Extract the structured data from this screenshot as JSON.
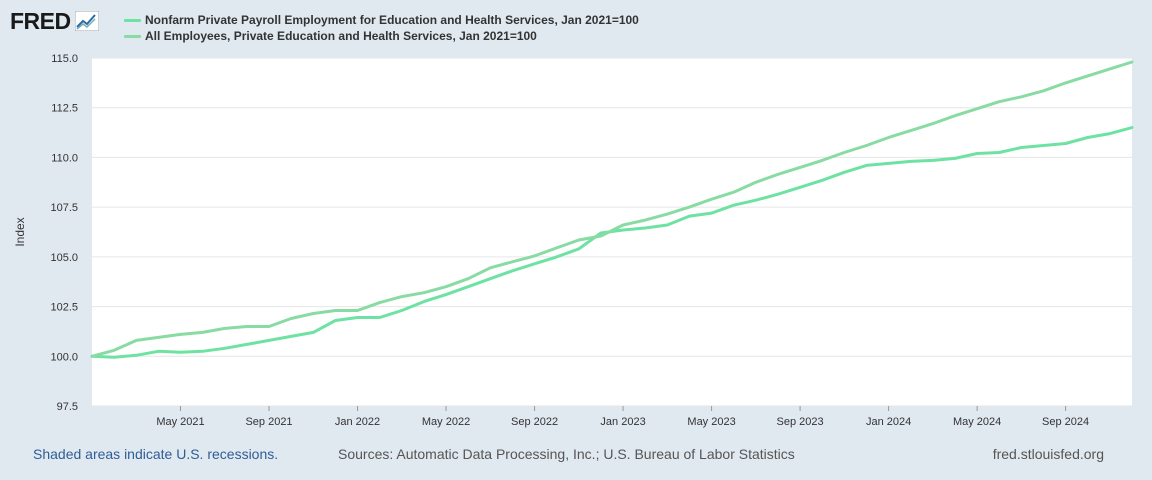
{
  "logo": {
    "text": "FRED",
    "icon": "fred-chart-icon"
  },
  "colors": {
    "background": "#e1e9f0",
    "plot": "#ffffff",
    "grid": "#e6e6e6",
    "series1": "#6de2a2",
    "series2": "#88dba2"
  },
  "footer": {
    "recession_note": "Shaded areas indicate U.S. recessions.",
    "sources": "Sources: Automatic Data Processing, Inc.; U.S. Bureau of Labor Statistics",
    "site": "fred.stlouisfed.org"
  },
  "chart_data": {
    "type": "line",
    "title": "",
    "xlabel": "",
    "ylabel": "Index",
    "ylim": [
      97.5,
      115.0
    ],
    "yticks": [
      97.5,
      100.0,
      102.5,
      105.0,
      107.5,
      110.0,
      112.5,
      115.0
    ],
    "ytick_labels": [
      "97.5",
      "100.0",
      "102.5",
      "105.0",
      "107.5",
      "110.0",
      "112.5",
      "115.0"
    ],
    "xlim": [
      "2021-01",
      "2024-12"
    ],
    "xticks": [
      {
        "date": "2021-05",
        "label": "May 2021"
      },
      {
        "date": "2021-09",
        "label": "Sep 2021"
      },
      {
        "date": "2022-01",
        "label": "Jan 2022"
      },
      {
        "date": "2022-05",
        "label": "May 2022"
      },
      {
        "date": "2022-09",
        "label": "Sep 2022"
      },
      {
        "date": "2023-01",
        "label": "Jan 2023"
      },
      {
        "date": "2023-05",
        "label": "May 2023"
      },
      {
        "date": "2023-09",
        "label": "Sep 2023"
      },
      {
        "date": "2024-01",
        "label": "Jan 2024"
      },
      {
        "date": "2024-05",
        "label": "May 2024"
      },
      {
        "date": "2024-09",
        "label": "Sep 2024"
      }
    ],
    "grid": true,
    "legend_position": "top-left",
    "x": [
      "2021-01",
      "2021-02",
      "2021-03",
      "2021-04",
      "2021-05",
      "2021-06",
      "2021-07",
      "2021-08",
      "2021-09",
      "2021-10",
      "2021-11",
      "2021-12",
      "2022-01",
      "2022-02",
      "2022-03",
      "2022-04",
      "2022-05",
      "2022-06",
      "2022-07",
      "2022-08",
      "2022-09",
      "2022-10",
      "2022-11",
      "2022-12",
      "2023-01",
      "2023-02",
      "2023-03",
      "2023-04",
      "2023-05",
      "2023-06",
      "2023-07",
      "2023-08",
      "2023-09",
      "2023-10",
      "2023-11",
      "2023-12",
      "2024-01",
      "2024-02",
      "2024-03",
      "2024-04",
      "2024-05",
      "2024-06",
      "2024-07",
      "2024-08",
      "2024-09",
      "2024-10",
      "2024-11",
      "2024-12"
    ],
    "series": [
      {
        "name": "Nonfarm Private Payroll Employment for Education and Health Services, Jan 2021=100",
        "color": "#6de2a2",
        "values": [
          100.0,
          99.95,
          100.05,
          100.25,
          100.2,
          100.25,
          100.4,
          100.6,
          100.8,
          101.0,
          101.2,
          101.8,
          101.95,
          101.95,
          102.3,
          102.75,
          103.1,
          103.5,
          103.9,
          104.3,
          104.65,
          105.0,
          105.4,
          106.2,
          106.35,
          106.45,
          106.6,
          107.05,
          107.2,
          107.6,
          107.85,
          108.15,
          108.5,
          108.85,
          109.25,
          109.6,
          109.7,
          109.8,
          109.85,
          109.95,
          110.2,
          110.25,
          110.5,
          110.6,
          110.7,
          111.0,
          111.2,
          111.5
        ]
      },
      {
        "name": "All Employees, Private Education and Health Services, Jan 2021=100",
        "color": "#88dba2",
        "values": [
          100.0,
          100.3,
          100.8,
          100.95,
          101.1,
          101.2,
          101.4,
          101.5,
          101.5,
          101.9,
          102.15,
          102.3,
          102.3,
          102.7,
          103.0,
          103.2,
          103.5,
          103.9,
          104.45,
          104.75,
          105.05,
          105.45,
          105.85,
          106.05,
          106.6,
          106.85,
          107.15,
          107.5,
          107.9,
          108.25,
          108.75,
          109.15,
          109.5,
          109.85,
          110.25,
          110.6,
          111.0,
          111.35,
          111.7,
          112.1,
          112.45,
          112.8,
          113.05,
          113.35,
          113.75,
          114.1,
          114.45,
          114.8
        ]
      }
    ]
  }
}
